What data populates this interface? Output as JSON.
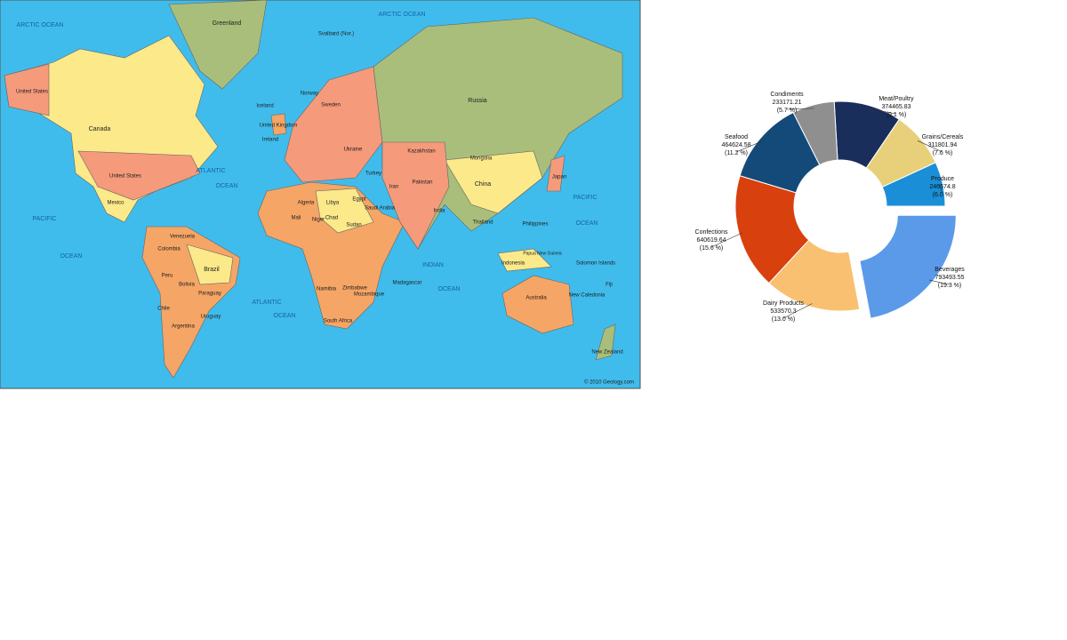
{
  "map": {
    "labels": [
      "ARCTIC OCEAN",
      "Greenland",
      "Svalbard (Nor.)",
      "ARCTIC OCEAN",
      "United States",
      "Canada",
      "Russia",
      "Iceland",
      "Norway",
      "Sweden",
      "United Kingdom",
      "Ireland",
      "Ukraine",
      "Kazakhstan",
      "Mongolia",
      "China",
      "Japan",
      "United States",
      "ATLANTIC",
      "OCEAN",
      "PACIFIC",
      "OCEAN",
      "Mexico",
      "Brazil",
      "Peru",
      "Bolivia",
      "Paraguay",
      "Chile",
      "Uruguay",
      "Argentina",
      "Algeria",
      "Libya",
      "Egypt",
      "Sudan",
      "Mali",
      "Niger",
      "Chad",
      "India",
      "Iran",
      "Saudi Arabia",
      "Madagascar",
      "South Africa",
      "Mozambique",
      "Zimbabwe",
      "Namibia",
      "Indonesia",
      "Philippines",
      "Australia",
      "New Zealand",
      "INDIAN",
      "OCEAN",
      "ATLANTIC",
      "OCEAN",
      "PACIFIC",
      "OCEAN",
      "Papua New Guinea",
      "Solomon Islands",
      "Fiji",
      "New Caledonia",
      "Venezuela",
      "Colombia",
      "Turkey",
      "Pakistan",
      "Thailand",
      "© 2010 Geology.com"
    ]
  },
  "chart_data": {
    "type": "donut",
    "categories": [
      "Produce",
      "Grains/Cereals",
      "Meat/Poultry",
      "Condiments",
      "Seafood",
      "Confections",
      "Dairy Products",
      "Beverages"
    ],
    "values": [
      246574.8,
      311801.94,
      374465.83,
      233171.21,
      464624.58,
      640619.64,
      533570.3,
      793493.55
    ],
    "value_labels": [
      "(6.0 %)",
      "(7.6 %)",
      "(9.1 %)",
      "(5.7 %)",
      "(11.2 %)",
      "(15.6 %)",
      "(13.0 %)",
      "(19.3 %)"
    ],
    "colors": [
      "#1a8fd8",
      "#e8d07a",
      "#1a2e5c",
      "#8f8f8f",
      "#134a7a",
      "#d8400e",
      "#f8c070",
      "#5a9ae8"
    ],
    "exploded": "Beverages"
  }
}
